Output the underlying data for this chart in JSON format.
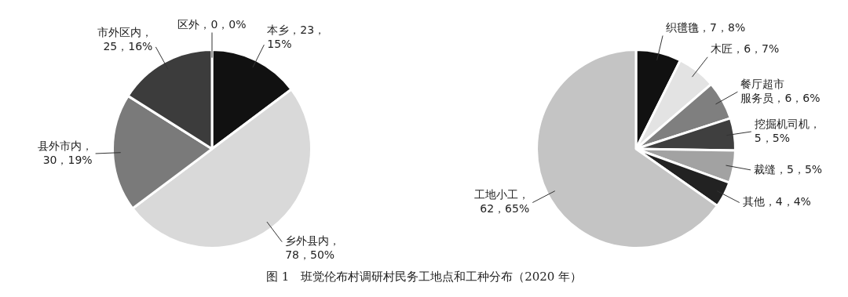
{
  "chart_data": [
    {
      "type": "pie",
      "categories": [
        "本乡，23，\n15%",
        "乡外县内，\n78，50%",
        "县外市内，\n30，19%",
        "市外区内，\n25，16%",
        "区外，0，0%"
      ],
      "values": [
        23,
        78,
        30,
        25,
        0
      ],
      "colors": [
        "#111111",
        "#d9d9d9",
        "#7a7a7a",
        "#3c3c3c",
        "#bbbbbb"
      ],
      "legend": false,
      "annotations": [
        "图 1　班觉伦布村调研村民务工地点和工种分布（2020 年）"
      ]
    },
    {
      "type": "pie",
      "categories": [
        "织氆氇，7，8%",
        "木匠，6，7%",
        "餐厅超市服务员，6，6%",
        "挖掘机司机，\n5，5%",
        "裁缝，5，5%",
        "其他，4，4%",
        "工地小工，\n62，65%"
      ],
      "values": [
        7,
        6,
        6,
        5,
        5,
        4,
        62
      ],
      "colors": [
        "#111111",
        "#e3e3e3",
        "#7f7f7f",
        "#3f3f3f",
        "#a2a2a2",
        "#222222",
        "#c4c4c4"
      ],
      "legend": false
    }
  ]
}
